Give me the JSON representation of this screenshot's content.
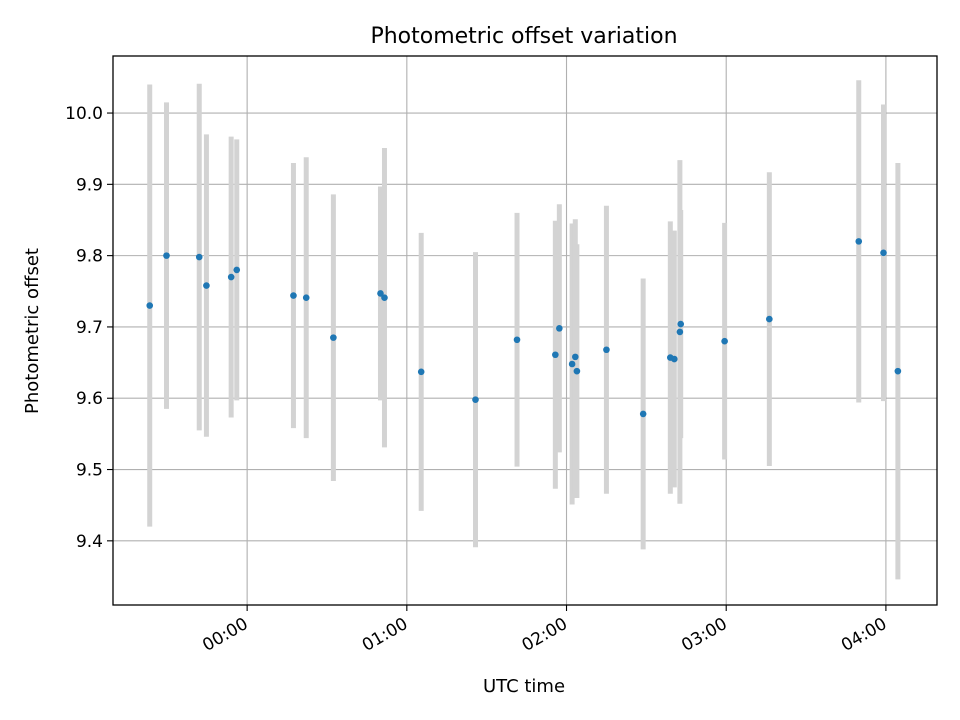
{
  "chart_data": {
    "type": "scatter",
    "title": "Photometric offset variation",
    "xlabel": "UTC time",
    "ylabel": "Photometric offset",
    "x_unit": "hours since 00:00 UTC",
    "xlim": [
      -0.84,
      4.32
    ],
    "ylim": [
      9.31,
      10.08
    ],
    "grid": true,
    "x_ticks": [
      {
        "value": 0,
        "label": "00:00"
      },
      {
        "value": 1,
        "label": "01:00"
      },
      {
        "value": 2,
        "label": "02:00"
      },
      {
        "value": 3,
        "label": "03:00"
      },
      {
        "value": 4,
        "label": "04:00"
      }
    ],
    "y_ticks": [
      {
        "value": 9.4,
        "label": "9.4"
      },
      {
        "value": 9.5,
        "label": "9.5"
      },
      {
        "value": 9.6,
        "label": "9.6"
      },
      {
        "value": 9.7,
        "label": "9.7"
      },
      {
        "value": 9.8,
        "label": "9.8"
      },
      {
        "value": 9.9,
        "label": "9.9"
      },
      {
        "value": 10.0,
        "label": "10.0"
      }
    ],
    "colors": {
      "point": "#1f77b4",
      "errorbar": "#d3d3d3",
      "grid": "#b0b0b0"
    },
    "points": [
      {
        "x": -0.61,
        "y": 9.73,
        "err": 0.31
      },
      {
        "x": -0.505,
        "y": 9.8,
        "err": 0.215
      },
      {
        "x": -0.3,
        "y": 9.798,
        "err": 0.243
      },
      {
        "x": -0.255,
        "y": 9.758,
        "err": 0.212
      },
      {
        "x": -0.1,
        "y": 9.77,
        "err": 0.197
      },
      {
        "x": -0.065,
        "y": 9.78,
        "err": 0.183
      },
      {
        "x": 0.29,
        "y": 9.744,
        "err": 0.186
      },
      {
        "x": 0.37,
        "y": 9.741,
        "err": 0.197
      },
      {
        "x": 0.54,
        "y": 9.685,
        "err": 0.201
      },
      {
        "x": 0.835,
        "y": 9.747,
        "err": 0.15
      },
      {
        "x": 0.86,
        "y": 9.741,
        "err": 0.21
      },
      {
        "x": 1.09,
        "y": 9.637,
        "err": 0.195
      },
      {
        "x": 1.43,
        "y": 9.598,
        "err": 0.207
      },
      {
        "x": 1.69,
        "y": 9.682,
        "err": 0.178
      },
      {
        "x": 1.93,
        "y": 9.661,
        "err": 0.188
      },
      {
        "x": 1.955,
        "y": 9.698,
        "err": 0.174
      },
      {
        "x": 2.035,
        "y": 9.648,
        "err": 0.197
      },
      {
        "x": 2.055,
        "y": 9.658,
        "err": 0.193
      },
      {
        "x": 2.065,
        "y": 9.638,
        "err": 0.178
      },
      {
        "x": 2.25,
        "y": 9.668,
        "err": 0.202
      },
      {
        "x": 2.48,
        "y": 9.578,
        "err": 0.19
      },
      {
        "x": 2.65,
        "y": 9.657,
        "err": 0.191
      },
      {
        "x": 2.675,
        "y": 9.655,
        "err": 0.18
      },
      {
        "x": 2.71,
        "y": 9.693,
        "err": 0.241
      },
      {
        "x": 2.715,
        "y": 9.704,
        "err": 0.16
      },
      {
        "x": 2.99,
        "y": 9.68,
        "err": 0.166
      },
      {
        "x": 3.27,
        "y": 9.711,
        "err": 0.206
      },
      {
        "x": 3.83,
        "y": 9.82,
        "err": 0.226
      },
      {
        "x": 3.985,
        "y": 9.804,
        "err": 0.208
      },
      {
        "x": 4.075,
        "y": 9.638,
        "err": 0.292
      }
    ]
  }
}
